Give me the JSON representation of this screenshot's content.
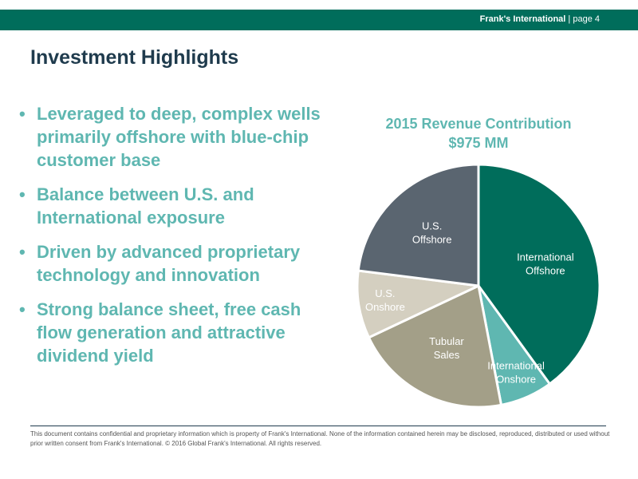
{
  "header": {
    "brand": "Frank's International",
    "separator": " | ",
    "page": "page 4"
  },
  "title": "Investment Highlights",
  "bullets": [
    "Leveraged to deep, complex wells primarily offshore with blue-chip customer base",
    "Balance between U.S. and International exposure",
    "Driven by advanced proprietary technology and innovation",
    "Strong balance sheet, free cash flow generation and attractive dividend yield"
  ],
  "chart_data": {
    "type": "pie",
    "title": "2015 Revenue Contribution",
    "subtitle": "$975 MM",
    "slices": [
      {
        "label_lines": [
          "International",
          "Offshore"
        ],
        "value": 40,
        "color": "#006d5b",
        "label_color": "#ffffff"
      },
      {
        "label_lines": [
          "International",
          "Onshore"
        ],
        "value": 7,
        "color": "#5fb7b1",
        "label_color": "#ffffff"
      },
      {
        "label_lines": [
          "Tubular",
          "Sales"
        ],
        "value": 21,
        "color": "#a39f88",
        "label_color": "#ffffff"
      },
      {
        "label_lines": [
          "U.S.",
          "Onshore"
        ],
        "value": 9,
        "color": "#d4cfc0",
        "label_color": "#ffffff"
      },
      {
        "label_lines": [
          "U.S.",
          "Offshore"
        ],
        "value": 23,
        "color": "#5a6570",
        "label_color": "#ffffff"
      }
    ]
  },
  "footer": "This document contains confidential and proprietary information which is property of Frank's International. None of the information contained herein may be disclosed, reproduced, distributed or used without prior written consent from Frank's International. © 2016 Global Frank's International. All rights reserved."
}
